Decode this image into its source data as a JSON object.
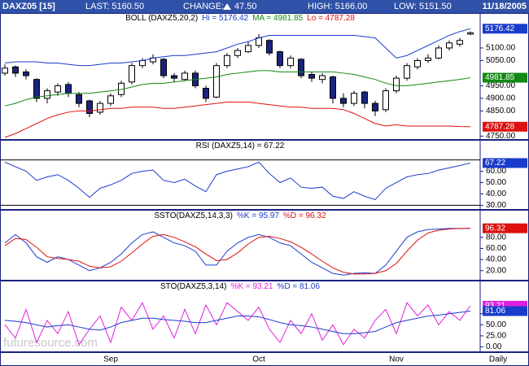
{
  "header": {
    "symbol": "DAXZ05 [15]",
    "last": "LAST: 5160.50",
    "change_label": "CHANGE:",
    "change": "47.50",
    "high": "HIGH: 5166.00",
    "low": "LOW: 5151.50",
    "date": "11/18/2005"
  },
  "watermark": "futuresource.com",
  "chart_data": [
    {
      "type": "candlestick",
      "title": "BOLL (DAXZ5,20,2)",
      "up_color": "#ffffff",
      "down_color": "#1a237e",
      "open": [
        5000,
        5025,
        5005,
        4975,
        4900,
        4925,
        4955,
        4915,
        4890,
        4845,
        4880,
        4915,
        4965,
        5030,
        5045,
        5055,
        4990,
        4975,
        5000,
        4940,
        4905,
        5030,
        5070,
        5085,
        5110,
        5130,
        5085,
        5030,
        5055,
        4995,
        4975,
        4985,
        4900,
        4880,
        4925,
        4880,
        4855,
        4930,
        4980,
        5025,
        5050,
        5060,
        5100,
        5115,
        5155
      ],
      "high": [
        5035,
        5030,
        5015,
        4980,
        4940,
        4960,
        4965,
        4925,
        4895,
        4890,
        4920,
        4970,
        5040,
        5060,
        5075,
        5060,
        5000,
        5010,
        5010,
        4950,
        5040,
        5080,
        5100,
        5125,
        5155,
        5135,
        5090,
        5070,
        5060,
        5005,
        5000,
        4990,
        4920,
        4930,
        4930,
        4890,
        4940,
        4990,
        5040,
        5060,
        5075,
        5110,
        5130,
        5140,
        5166
      ],
      "low": [
        4990,
        4985,
        4975,
        4885,
        4880,
        4910,
        4905,
        4865,
        4825,
        4835,
        4870,
        4905,
        4955,
        5020,
        5035,
        4980,
        4965,
        4970,
        4940,
        4885,
        4900,
        5020,
        5060,
        5080,
        5100,
        5070,
        5020,
        5020,
        4980,
        4965,
        4960,
        4880,
        4865,
        4870,
        4860,
        4830,
        4845,
        4920,
        4970,
        5015,
        5040,
        5055,
        5090,
        5105,
        5151
      ],
      "close": [
        5020,
        5000,
        4990,
        4900,
        4930,
        4950,
        4920,
        4880,
        4840,
        4880,
        4910,
        4960,
        5030,
        5050,
        5060,
        4990,
        4980,
        5000,
        4950,
        4900,
        5030,
        5070,
        5090,
        5110,
        5140,
        5080,
        5030,
        5060,
        4990,
        4980,
        4990,
        4900,
        4880,
        4920,
        4880,
        4850,
        4930,
        4980,
        5030,
        5050,
        5060,
        5100,
        5120,
        5130,
        5160
      ],
      "series": [
        {
          "name": "Hi = 5176.42",
          "color": "#1a3ccc",
          "last_value": 5176.42,
          "values": [
            5040,
            5045,
            5045,
            5045,
            5040,
            5040,
            5035,
            5030,
            5030,
            5035,
            5040,
            5040,
            5045,
            5050,
            5060,
            5065,
            5070,
            5070,
            5075,
            5080,
            5085,
            5100,
            5115,
            5125,
            5140,
            5150,
            5150,
            5150,
            5150,
            5150,
            5150,
            5150,
            5150,
            5150,
            5145,
            5140,
            5100,
            5060,
            5070,
            5090,
            5110,
            5130,
            5150,
            5165,
            5176.42
          ]
        },
        {
          "name": "MA = 4981.85",
          "color": "#118811",
          "last_value": 4981.85,
          "values": [
            4870,
            4880,
            4895,
            4905,
            4910,
            4915,
            4920,
            4920,
            4920,
            4925,
            4930,
            4935,
            4945,
            4955,
            4960,
            4960,
            4965,
            4970,
            4975,
            4980,
            4985,
            4995,
            5000,
            5005,
            5010,
            5010,
            5005,
            5005,
            5005,
            5005,
            5005,
            5005,
            5000,
            4995,
            4985,
            4975,
            4960,
            4950,
            4950,
            4955,
            4960,
            4965,
            4970,
            4975,
            4981.85
          ]
        },
        {
          "name": "Lo = 4787.28",
          "color": "#dd1111",
          "last_value": 4787.28,
          "values": [
            4745,
            4760,
            4780,
            4800,
            4820,
            4835,
            4845,
            4850,
            4850,
            4855,
            4860,
            4860,
            4865,
            4865,
            4865,
            4860,
            4860,
            4865,
            4870,
            4875,
            4880,
            4885,
            4885,
            4885,
            4880,
            4875,
            4870,
            4865,
            4865,
            4860,
            4860,
            4860,
            4855,
            4840,
            4820,
            4800,
            4790,
            4795,
            4790,
            4790,
            4790,
            4790,
            4790,
            4788,
            4787.28
          ]
        }
      ],
      "ylim": [
        4735,
        5200
      ],
      "yticks": [
        {
          "value": 5100,
          "label": "5100.00"
        },
        {
          "value": 5050,
          "label": "5050.00"
        },
        {
          "value": 4950,
          "label": "4950.00"
        },
        {
          "value": 4900,
          "label": "4900.00"
        },
        {
          "value": 4850,
          "label": "4850.00"
        },
        {
          "value": 4750,
          "label": "4750.00"
        }
      ]
    },
    {
      "type": "line",
      "title": "RSI (DAXZ5,14) = 67.22",
      "series": [
        {
          "color": "#1a3ccc",
          "last_value": 67.22,
          "values": [
            68,
            64,
            60,
            52,
            55,
            57,
            52,
            45,
            37,
            45,
            48,
            52,
            58,
            60,
            61,
            52,
            50,
            53,
            47,
            42,
            57,
            60,
            62,
            64,
            68,
            58,
            50,
            54,
            46,
            45,
            46,
            38,
            36,
            42,
            38,
            35,
            45,
            50,
            55,
            57,
            58,
            61,
            63,
            65,
            67.22
          ]
        }
      ],
      "reference_lines": [
        70,
        30
      ],
      "ylim": [
        26,
        79
      ],
      "yticks": [
        {
          "value": 60,
          "label": "60.00"
        },
        {
          "value": 50,
          "label": "50.00"
        },
        {
          "value": 40,
          "label": "40.00"
        },
        {
          "value": 30,
          "label": "30.00"
        }
      ]
    },
    {
      "type": "line",
      "title": "SSTO(DAXZ5,14,3,3)",
      "series": [
        {
          "name": "%K = 95.97",
          "color": "#1a3ccc",
          "values": [
            70,
            85,
            70,
            45,
            35,
            45,
            40,
            30,
            20,
            25,
            35,
            50,
            70,
            85,
            90,
            80,
            70,
            65,
            55,
            30,
            30,
            55,
            70,
            80,
            85,
            80,
            70,
            65,
            50,
            35,
            25,
            15,
            12,
            15,
            16,
            15,
            30,
            55,
            80,
            90,
            94,
            95,
            96,
            96,
            95.97
          ]
        },
        {
          "name": "%D = 96.32",
          "color": "#dd1111",
          "last_value": 96.32,
          "values": [
            65,
            78,
            76,
            62,
            45,
            42,
            40,
            37,
            28,
            25,
            27,
            37,
            52,
            68,
            82,
            85,
            80,
            72,
            63,
            50,
            38,
            40,
            52,
            68,
            80,
            82,
            78,
            72,
            62,
            50,
            37,
            25,
            17,
            14,
            14,
            15,
            20,
            33,
            55,
            75,
            88,
            93,
            95,
            96,
            96.32
          ]
        }
      ],
      "ylim": [
        2,
        112
      ],
      "yticks": [
        {
          "value": 80,
          "label": "80.00"
        },
        {
          "value": 60,
          "label": "60.00"
        },
        {
          "value": 40,
          "label": "40.00"
        },
        {
          "value": 20,
          "label": "20.00"
        }
      ]
    },
    {
      "type": "line",
      "title": "STO(DAXZ5,3,14)",
      "series": [
        {
          "name": "%K = 93.21",
          "color": "#e020e0",
          "last_value": 93.21,
          "values": [
            50,
            20,
            85,
            10,
            60,
            30,
            80,
            5,
            40,
            70,
            10,
            90,
            60,
            100,
            40,
            70,
            20,
            85,
            30,
            95,
            50,
            100,
            80,
            60,
            90,
            40,
            10,
            60,
            30,
            75,
            15,
            50,
            5,
            40,
            20,
            60,
            85,
            30,
            100,
            70,
            95,
            50,
            80,
            60,
            93.21
          ]
        },
        {
          "name": "%D = 81.06",
          "color": "#1a3ccc",
          "last_value": 81.06,
          "values": [
            60,
            58,
            55,
            50,
            45,
            48,
            50,
            45,
            40,
            38,
            45,
            55,
            60,
            65,
            65,
            62,
            60,
            58,
            55,
            55,
            60,
            65,
            70,
            70,
            68,
            62,
            55,
            50,
            48,
            45,
            40,
            35,
            30,
            30,
            32,
            35,
            45,
            55,
            60,
            65,
            70,
            72,
            75,
            78,
            81.06
          ]
        }
      ],
      "ylim": [
        -12,
        128
      ],
      "yticks": [
        {
          "value": 75,
          "label": "75.00"
        },
        {
          "value": 50,
          "label": "50.00"
        },
        {
          "value": 25,
          "label": "25.00"
        },
        {
          "value": 0,
          "label": "0.00"
        }
      ],
      "categories": [
        null,
        null,
        null,
        null,
        null,
        null,
        null,
        null,
        null,
        null,
        "Sep",
        null,
        null,
        null,
        null,
        null,
        null,
        null,
        null,
        null,
        null,
        null,
        null,
        null,
        "Oct",
        null,
        null,
        null,
        null,
        null,
        null,
        null,
        null,
        null,
        null,
        null,
        null,
        "Nov",
        null,
        null,
        null,
        null,
        null,
        null,
        null
      ],
      "period_label": "Daily"
    }
  ]
}
